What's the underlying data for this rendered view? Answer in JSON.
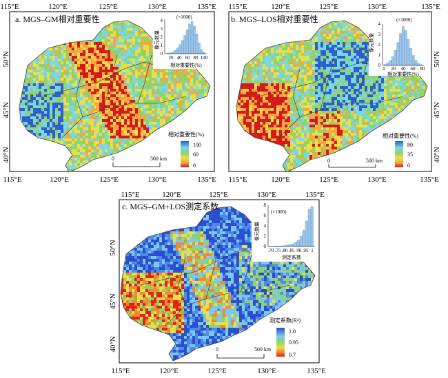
{
  "panels": [
    {
      "title": "a. MGS–GM相对重要性",
      "top_ticks": [
        "115°E",
        "120°E",
        "125°E",
        "130°E",
        "135°E"
      ],
      "bottom_ticks": [
        "115°E",
        "120°E",
        "125°E",
        "130°E",
        "135°E"
      ],
      "lat_ticks": [
        "50°N",
        "45°N",
        "40°N"
      ],
      "lat_side": "right",
      "legend": {
        "title": "相对重要性(%)",
        "labels": [
          "100",
          "60",
          "0"
        ]
      },
      "scale": {
        "zero": "0",
        "label": "500 km"
      },
      "inset": {
        "multiplier": "(×1000)",
        "ylabel": "像元数量",
        "xlabel": "相对重要性(%)",
        "xticks": [
          "20",
          "40",
          "60",
          "80",
          "100"
        ],
        "yticks": [
          "0",
          "1",
          "2",
          "3",
          "4"
        ]
      }
    },
    {
      "title": "b. MGS–LOS相对重要性",
      "top_ticks": [
        "115°E",
        "120°E",
        "125°E",
        "130°E",
        "135°E"
      ],
      "bottom_ticks": [
        "115°E",
        "120°E",
        "125°E",
        "130°E",
        "135°E"
      ],
      "lat_ticks": [
        "50°N",
        "45°N",
        "40°N"
      ],
      "lat_side": "right",
      "legend": {
        "title": "相对重要性(%)",
        "labels": [
          "80",
          "35",
          "0"
        ]
      },
      "scale": {
        "zero": "0",
        "label": "500 km"
      },
      "inset": {
        "multiplier": "(×1000)",
        "ylabel": "像元数量",
        "xlabel": "相对重要性(%)",
        "xticks": [
          "0",
          "20",
          "40",
          "60",
          "80"
        ],
        "yticks": [
          "0",
          "1",
          "2",
          "3",
          "4"
        ]
      }
    },
    {
      "title": "c. MGS–GM+LOS测定系数",
      "top_ticks": [
        "115°E",
        "120°E",
        "125°E",
        "130°E",
        "135°E"
      ],
      "bottom_ticks": [
        "115°E",
        "120°E",
        "125°E",
        "130°E",
        "135°E"
      ],
      "lat_ticks": [
        "50°N",
        "45°N",
        "40°N"
      ],
      "lat_side": "left",
      "legend": {
        "title": "测定系数(R²)",
        "labels": [
          "1.0",
          "0.95",
          "0.7"
        ]
      },
      "scale": {
        "zero": "0",
        "label": "500 km"
      },
      "inset": {
        "multiplier": "(×1000)",
        "ylabel": "像元数量",
        "xlabel": "测定系数",
        "xticks": [
          ".70",
          ".75",
          ".80",
          ".85",
          ".90",
          ".95",
          "1"
        ],
        "yticks": [
          "0",
          "2",
          "4",
          "6",
          "8"
        ]
      }
    }
  ],
  "histograms": {
    "a": [
      0.05,
      0.1,
      0.2,
      0.4,
      0.7,
      1.1,
      1.6,
      2.2,
      2.9,
      3.6,
      3.9,
      3.3,
      2.4,
      1.3,
      0.5,
      0.15
    ],
    "b": [
      0.1,
      0.25,
      0.5,
      0.9,
      1.5,
      2.3,
      3.2,
      3.9,
      3.5,
      2.6,
      1.7,
      1.0,
      0.5,
      0.2,
      0.08
    ],
    "c": [
      0.05,
      0.05,
      0.1,
      0.1,
      0.15,
      0.2,
      0.3,
      0.4,
      0.6,
      0.9,
      1.4,
      2.2,
      3.5,
      5.5,
      8.0,
      8.6
    ]
  },
  "colors": {
    "a": [
      "#d7191c",
      "#f4a742",
      "#e8e04a",
      "#8fd36a",
      "#7ad7e8",
      "#2c5fd6"
    ],
    "b": [
      "#d7191c",
      "#f4a742",
      "#e8e04a",
      "#8fd36a",
      "#7ad7e8",
      "#2c5fd6"
    ],
    "c": [
      "#2c4fd0",
      "#4f8be6",
      "#7bc8f0",
      "#8fd36a",
      "#e8e04a",
      "#f28a2e",
      "#e0221a"
    ],
    "legend_a": [
      "#2c5fd6",
      "#7ad7e8",
      "#8fd36a",
      "#e8e04a",
      "#f4a742",
      "#d7191c"
    ],
    "legend_c": [
      "#2c4fd0",
      "#7bc8f0",
      "#8fd36a",
      "#e8e04a",
      "#f28a2e",
      "#e0221a"
    ]
  }
}
